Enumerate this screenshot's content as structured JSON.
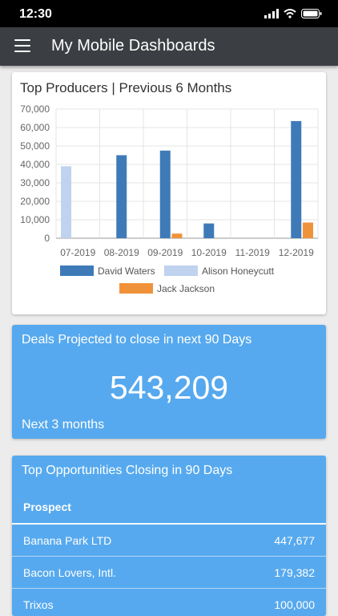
{
  "status_bar": {
    "time": "12:30"
  },
  "app_bar": {
    "title": "My Mobile Dashboards"
  },
  "top_producers": {
    "title": "Top Producers | Previous 6 Months"
  },
  "chart_data": {
    "type": "bar",
    "title": "Top Producers | Previous 6 Months",
    "categories": [
      "07-2019",
      "08-2019",
      "09-2019",
      "10-2019",
      "11-2019",
      "12-2019"
    ],
    "series": [
      {
        "name": "David Waters",
        "color": "#3f7ab8",
        "values": [
          0,
          45000,
          47500,
          8000,
          0,
          63500
        ]
      },
      {
        "name": "Alison Honeycutt",
        "color": "#bfd2ee",
        "values": [
          39000,
          0,
          0,
          0,
          0,
          0
        ]
      },
      {
        "name": "Jack Jackson",
        "color": "#f0923a",
        "values": [
          0,
          0,
          2500,
          0,
          0,
          8500
        ]
      }
    ],
    "ylim": [
      0,
      70000
    ],
    "yticks": [
      "0",
      "10,000",
      "20,000",
      "30,000",
      "40,000",
      "50,000",
      "60,000",
      "70,000"
    ],
    "grid": true,
    "legend": "bottom"
  },
  "deals_projected": {
    "title": "Deals Projected to close in next 90 Days",
    "value": "543,209",
    "subtitle": "Next 3 months"
  },
  "opportunities": {
    "title": "Top Opportunities Closing in 90 Days",
    "column_header": "Prospect",
    "rows": [
      {
        "name": "Banana Park LTD",
        "amount": "447,677"
      },
      {
        "name": "Bacon Lovers, Intl.",
        "amount": "179,382"
      },
      {
        "name": "Trixos",
        "amount": "100,000"
      }
    ]
  }
}
